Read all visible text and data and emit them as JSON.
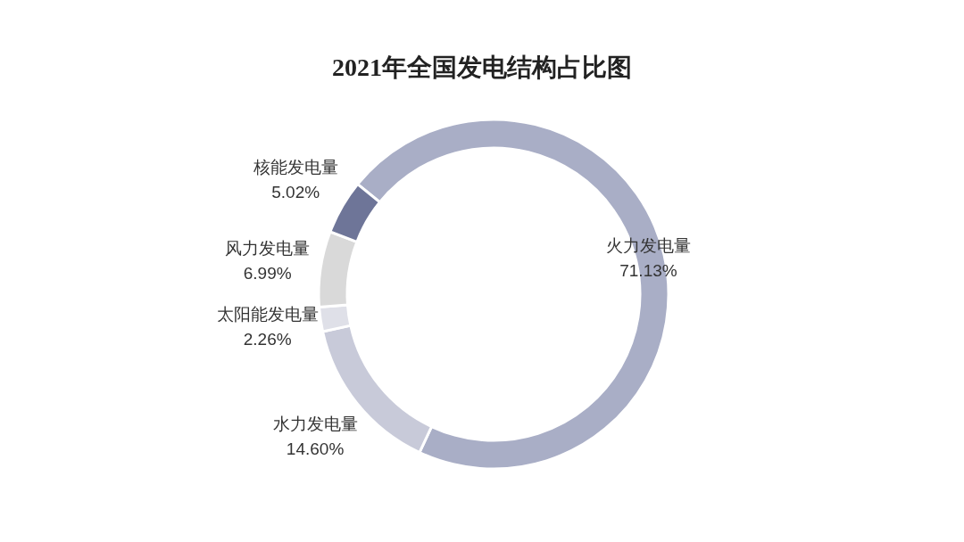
{
  "chart_data": {
    "type": "donut",
    "title": "2021年全国发电结构占比图",
    "categories": [
      "火力发电量",
      "水力发电量",
      "太阳能发电量",
      "风力发电量",
      "核能发电量"
    ],
    "values": [
      71.13,
      14.6,
      2.26,
      6.99,
      5.02
    ],
    "colors": [
      "#a9aec6",
      "#c8cad9",
      "#dfe0e8",
      "#d9d9d9",
      "#6e7598"
    ],
    "value_labels": [
      "71.13%",
      "14.60%",
      "2.26%",
      "6.99%",
      "5.02%"
    ]
  }
}
